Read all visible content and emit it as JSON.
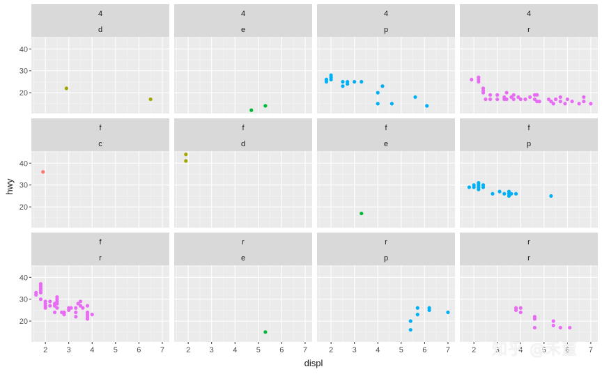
{
  "chart_data": {
    "type": "scatter",
    "facet_rows": 3,
    "facet_cols": 4,
    "xlabel": "displ",
    "ylabel": "hwy",
    "xlim": [
      1.4,
      7.3
    ],
    "ylim": [
      10.5,
      45.5
    ],
    "x_ticks": [
      2,
      3,
      4,
      5,
      6,
      7
    ],
    "y_ticks": [
      20,
      30,
      40
    ],
    "grid": true,
    "legend": "none",
    "colors": {
      "c": "#F8766D",
      "d": "#A3A500",
      "e": "#00BA38",
      "p": "#00B0F6",
      "r": "#E76BF3"
    },
    "panels": [
      {
        "strip1": "4",
        "strip2": "d",
        "color_key": "d",
        "points": [
          [
            2.9,
            22
          ],
          [
            6.5,
            17
          ]
        ]
      },
      {
        "strip1": "4",
        "strip2": "e",
        "color_key": "e",
        "points": [
          [
            4.7,
            12
          ],
          [
            5.3,
            14
          ]
        ]
      },
      {
        "strip1": "4",
        "strip2": "p",
        "color_key": "p",
        "points": [
          [
            1.8,
            25
          ],
          [
            1.8,
            26
          ],
          [
            1.8,
            26
          ],
          [
            2.0,
            27
          ],
          [
            2.0,
            28
          ],
          [
            2.0,
            26
          ],
          [
            2.5,
            25
          ],
          [
            2.5,
            23
          ],
          [
            2.7,
            25
          ],
          [
            2.7,
            24
          ],
          [
            3.0,
            25
          ],
          [
            3.3,
            25
          ],
          [
            4.0,
            20
          ],
          [
            4.0,
            15
          ],
          [
            4.2,
            23
          ],
          [
            4.6,
            15
          ],
          [
            5.6,
            18
          ],
          [
            6.1,
            14
          ]
        ]
      },
      {
        "strip1": "4",
        "strip2": "r",
        "color_key": "r",
        "points": [
          [
            1.9,
            26
          ],
          [
            2.2,
            25
          ],
          [
            2.2,
            27
          ],
          [
            2.2,
            26
          ],
          [
            2.4,
            22
          ],
          [
            2.4,
            20
          ],
          [
            2.4,
            21
          ],
          [
            2.5,
            17
          ],
          [
            2.7,
            17
          ],
          [
            2.7,
            19
          ],
          [
            3.0,
            17
          ],
          [
            3.0,
            19
          ],
          [
            3.3,
            17
          ],
          [
            3.3,
            18
          ],
          [
            3.4,
            20
          ],
          [
            3.4,
            17
          ],
          [
            3.6,
            18
          ],
          [
            3.7,
            17
          ],
          [
            3.7,
            19
          ],
          [
            3.9,
            18
          ],
          [
            4.0,
            17
          ],
          [
            4.2,
            17
          ],
          [
            4.4,
            18
          ],
          [
            4.6,
            19
          ],
          [
            4.6,
            17
          ],
          [
            4.7,
            16
          ],
          [
            4.7,
            19
          ],
          [
            4.8,
            16
          ],
          [
            5.2,
            17
          ],
          [
            5.3,
            16
          ],
          [
            5.4,
            15
          ],
          [
            5.5,
            17
          ],
          [
            5.7,
            18
          ],
          [
            5.7,
            16
          ],
          [
            5.9,
            15
          ],
          [
            6.0,
            17
          ],
          [
            6.2,
            16
          ],
          [
            6.5,
            15
          ],
          [
            6.7,
            18
          ],
          [
            6.7,
            16
          ],
          [
            7.0,
            15
          ]
        ]
      },
      {
        "strip1": "f",
        "strip2": "c",
        "color_key": "c",
        "points": [
          [
            1.9,
            36
          ]
        ]
      },
      {
        "strip1": "f",
        "strip2": "d",
        "color_key": "d",
        "points": [
          [
            1.9,
            44
          ],
          [
            1.9,
            41
          ]
        ]
      },
      {
        "strip1": "f",
        "strip2": "e",
        "color_key": "e",
        "points": [
          [
            3.3,
            17
          ]
        ]
      },
      {
        "strip1": "f",
        "strip2": "p",
        "color_key": "p",
        "points": [
          [
            1.8,
            29
          ],
          [
            2.0,
            29
          ],
          [
            2.0,
            30
          ],
          [
            2.2,
            31
          ],
          [
            2.2,
            29
          ],
          [
            2.2,
            28
          ],
          [
            2.2,
            30
          ],
          [
            2.4,
            29
          ],
          [
            2.4,
            30
          ],
          [
            2.8,
            26
          ],
          [
            3.1,
            27
          ],
          [
            3.3,
            26
          ],
          [
            3.5,
            26
          ],
          [
            3.5,
            25
          ],
          [
            3.5,
            27
          ],
          [
            3.6,
            26
          ],
          [
            3.8,
            26
          ],
          [
            5.3,
            25
          ]
        ]
      },
      {
        "strip1": "f",
        "strip2": "r",
        "color_key": "r",
        "points": [
          [
            1.6,
            33
          ],
          [
            1.6,
            32
          ],
          [
            1.8,
            37
          ],
          [
            1.8,
            35
          ],
          [
            1.8,
            36
          ],
          [
            1.8,
            34
          ],
          [
            1.8,
            33
          ],
          [
            1.8,
            30
          ],
          [
            2.0,
            29
          ],
          [
            2.0,
            28
          ],
          [
            2.0,
            27
          ],
          [
            2.0,
            26
          ],
          [
            2.2,
            29
          ],
          [
            2.2,
            27
          ],
          [
            2.4,
            28
          ],
          [
            2.4,
            24
          ],
          [
            2.4,
            27
          ],
          [
            2.5,
            31
          ],
          [
            2.5,
            30
          ],
          [
            2.5,
            29
          ],
          [
            2.5,
            28
          ],
          [
            2.5,
            26
          ],
          [
            2.7,
            24
          ],
          [
            2.8,
            23
          ],
          [
            2.8,
            24
          ],
          [
            3.0,
            26
          ],
          [
            3.0,
            25
          ],
          [
            3.1,
            26
          ],
          [
            3.3,
            22
          ],
          [
            3.3,
            24
          ],
          [
            3.3,
            26
          ],
          [
            3.4,
            28
          ],
          [
            3.5,
            27
          ],
          [
            3.5,
            29
          ],
          [
            3.6,
            26
          ],
          [
            3.8,
            27
          ],
          [
            3.8,
            23
          ],
          [
            3.8,
            22
          ],
          [
            3.8,
            21
          ],
          [
            3.8,
            24
          ],
          [
            4.0,
            23
          ]
        ]
      },
      {
        "strip1": "r",
        "strip2": "e",
        "color_key": "e",
        "points": [
          [
            5.3,
            15
          ]
        ]
      },
      {
        "strip1": "r",
        "strip2": "p",
        "color_key": "p",
        "points": [
          [
            5.4,
            16
          ],
          [
            5.4,
            20
          ],
          [
            5.7,
            23
          ],
          [
            5.7,
            26
          ],
          [
            6.2,
            25
          ],
          [
            6.2,
            26
          ],
          [
            7.0,
            24
          ]
        ]
      },
      {
        "strip1": "r",
        "strip2": "r",
        "color_key": "r",
        "points": [
          [
            3.8,
            26
          ],
          [
            3.8,
            25
          ],
          [
            4.0,
            26
          ],
          [
            4.0,
            24
          ],
          [
            4.6,
            22
          ],
          [
            4.6,
            21
          ],
          [
            4.6,
            17
          ],
          [
            5.4,
            20
          ],
          [
            5.4,
            18
          ],
          [
            5.7,
            17
          ],
          [
            6.1,
            17
          ]
        ]
      }
    ]
  }
}
